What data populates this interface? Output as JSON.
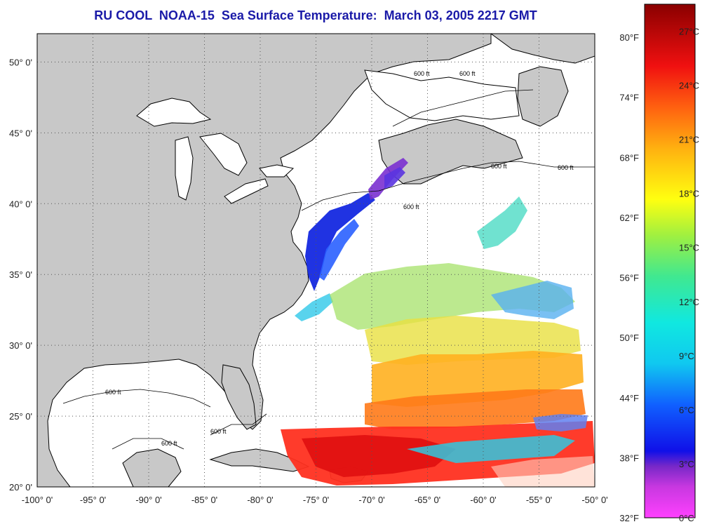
{
  "title": "RU COOL  NOAA-15  Sea Surface Temperature:  March 03, 2005 2217 GMT",
  "map": {
    "lon_range": [
      -100,
      -50
    ],
    "lat_range": [
      20,
      52
    ],
    "x_ticks": [
      "-100° 0'",
      "-95° 0'",
      "-90° 0'",
      "-85° 0'",
      "-80° 0'",
      "-75° 0'",
      "-70° 0'",
      "-65° 0'",
      "-60° 0'",
      "-55° 0'",
      "-50° 0'"
    ],
    "y_ticks": [
      "50° 0'",
      "45° 0'",
      "40° 0'",
      "35° 0'",
      "30° 0'",
      "25° 0'",
      "20° 0'"
    ],
    "isobath_labels": [
      "600 ft",
      "600 ft",
      "600 ft",
      "600 ft",
      "600 ft",
      "600 ft",
      "600 ft",
      "600 ft"
    ],
    "colors": {
      "land": "#c8c8c8",
      "ocean_no_data": "#ffffff",
      "grid": "#555555"
    }
  },
  "colorbar": {
    "fahrenheit_labels": [
      "80°F",
      "74°F",
      "68°F",
      "62°F",
      "56°F",
      "50°F",
      "44°F",
      "38°F",
      "32°F"
    ],
    "celsius_labels": [
      "27°C",
      "24°C",
      "21°C",
      "18°C",
      "15°C",
      "12°C",
      "9°C",
      "6°C",
      "3°C",
      "0°C"
    ],
    "range_c": [
      0,
      28.5
    ]
  }
}
